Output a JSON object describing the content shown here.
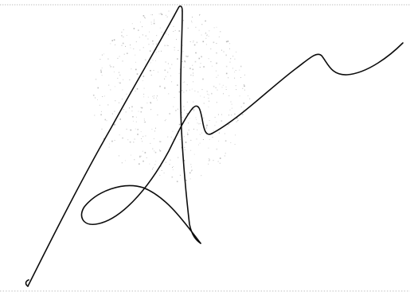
{
  "image": {
    "type": "handwritten-signature",
    "ink_color": "#0c0c0c",
    "paper_color": "#ffffff",
    "guide_line_color": "#bdbdbd",
    "scan_noise_color": "#a8a8a8"
  }
}
